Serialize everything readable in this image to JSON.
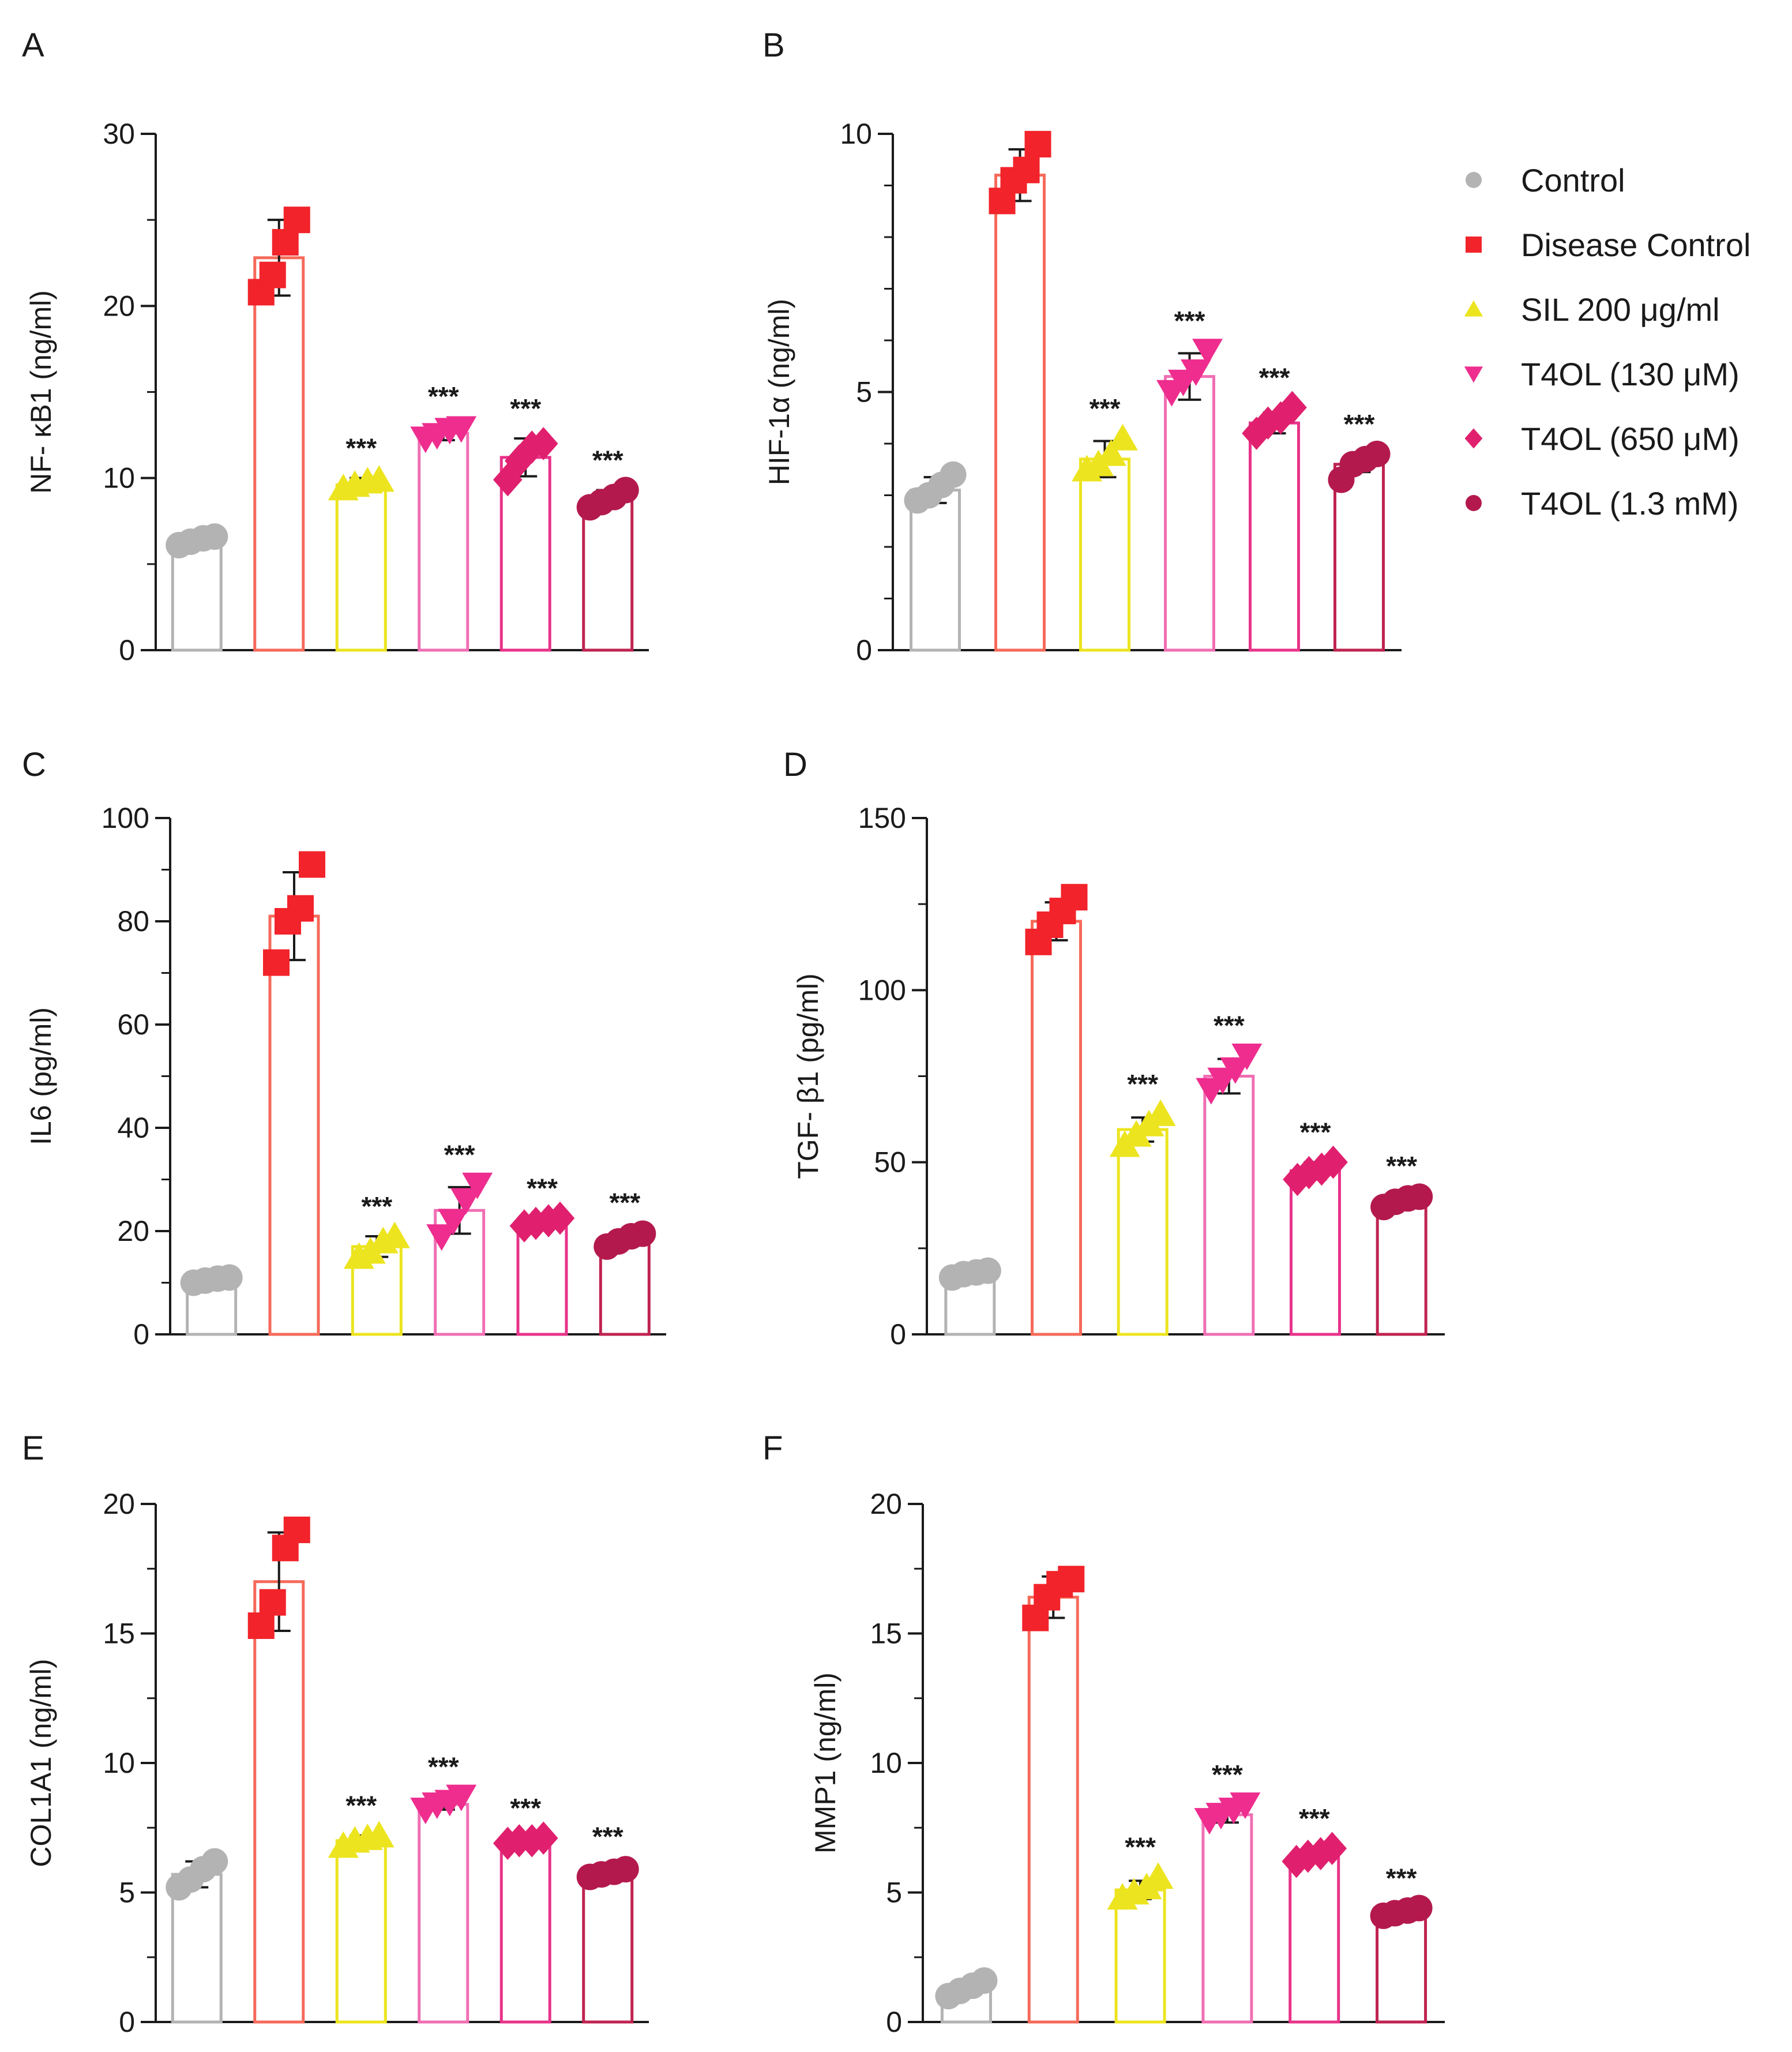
{
  "chart_data": [
    {
      "type": "bar",
      "panel": "A",
      "ylabel": "NF- κB1 (ng/ml)",
      "ylim": [
        0,
        30
      ],
      "yticks": [
        0,
        10,
        20,
        30
      ],
      "categories": [
        "Control",
        "Disease Control",
        "SIL 200 μg/ml",
        "T4OL (130 μM)",
        "T4OL (650 μM)",
        "T4OL (1.3 mM)"
      ],
      "values": [
        6.4,
        22.8,
        9.6,
        12.6,
        11.2,
        8.8
      ],
      "errors": [
        0.2,
        2.2,
        0.4,
        0.4,
        1.1,
        0.5
      ],
      "points": [
        [
          6.1,
          6.3,
          6.5,
          6.6
        ],
        [
          20.8,
          21.8,
          23.7,
          25.0
        ],
        [
          9.4,
          9.6,
          9.8,
          9.9
        ],
        [
          12.3,
          12.5,
          12.8,
          12.9
        ],
        [
          9.9,
          11.0,
          11.8,
          12.0
        ],
        [
          8.3,
          8.6,
          8.9,
          9.3
        ]
      ],
      "significance": [
        "",
        "",
        "***",
        "***",
        "***",
        "***"
      ]
    },
    {
      "type": "bar",
      "panel": "B",
      "ylabel": "HIF-1α  (ng/ml)",
      "ylim": [
        0,
        10
      ],
      "yticks": [
        0,
        5,
        10
      ],
      "categories": [
        "Control",
        "Disease Control",
        "SIL 200 μg/ml",
        "T4OL (130 μM)",
        "T4OL (650 μM)",
        "T4OL (1.3 mM)"
      ],
      "values": [
        3.1,
        9.2,
        3.7,
        5.3,
        4.4,
        3.6
      ],
      "errors": [
        0.25,
        0.5,
        0.35,
        0.45,
        0.2,
        0.15
      ],
      "points": [
        [
          2.9,
          3.0,
          3.2,
          3.4
        ],
        [
          8.7,
          9.1,
          9.3,
          9.8
        ],
        [
          3.5,
          3.6,
          3.8,
          4.1
        ],
        [
          5.0,
          5.2,
          5.4,
          5.8
        ],
        [
          4.2,
          4.4,
          4.5,
          4.7
        ],
        [
          3.3,
          3.6,
          3.7,
          3.8
        ]
      ],
      "significance": [
        "",
        "",
        "***",
        "***",
        "***",
        "***"
      ]
    },
    {
      "type": "bar",
      "panel": "C",
      "ylabel": "IL6 (pg/ml)",
      "ylim": [
        0,
        100
      ],
      "yticks": [
        0,
        20,
        40,
        60,
        80,
        100
      ],
      "categories": [
        "Control",
        "Disease Control",
        "SIL 200 μg/ml",
        "T4OL (130 μM)",
        "T4OL (650 μM)",
        "T4OL (1.3 mM)"
      ],
      "values": [
        10.5,
        81.0,
        17.0,
        24.0,
        21.5,
        18.5
      ],
      "errors": [
        0.5,
        8.5,
        2.0,
        4.5,
        0.8,
        1.2
      ],
      "points": [
        [
          10.0,
          10.4,
          10.8,
          11.0
        ],
        [
          72.0,
          80.0,
          82.5,
          91.0
        ],
        [
          15.0,
          16.0,
          18.0,
          19.0
        ],
        [
          19.0,
          22.0,
          26.0,
          29.0
        ],
        [
          21.0,
          21.5,
          22.0,
          22.5
        ],
        [
          17.0,
          18.0,
          19.0,
          19.5
        ]
      ],
      "significance": [
        "",
        "",
        "***",
        "***",
        "***",
        "***"
      ]
    },
    {
      "type": "bar",
      "panel": "D",
      "ylabel": "TGF- β1 (pg/ml)",
      "ylim": [
        0,
        150
      ],
      "yticks": [
        0,
        50,
        100,
        150
      ],
      "categories": [
        "Control",
        "Disease Control",
        "SIL 200 μg/ml",
        "T4OL (130 μM)",
        "T4OL (650 μM)",
        "T4OL (1.3 mM)"
      ],
      "values": [
        17.5,
        120.0,
        59.5,
        75.0,
        47.5,
        39.0
      ],
      "errors": [
        0.8,
        5.5,
        3.5,
        5.0,
        2.5,
        1.2
      ],
      "points": [
        [
          16.5,
          17.5,
          18.0,
          18.5
        ],
        [
          114.0,
          119.0,
          123.0,
          127.0
        ],
        [
          55.0,
          58.0,
          61.0,
          64.0
        ],
        [
          71.0,
          74.0,
          77.0,
          81.0
        ],
        [
          45.0,
          47.0,
          48.0,
          50.0
        ],
        [
          37.0,
          38.5,
          39.5,
          40.0
        ]
      ],
      "significance": [
        "",
        "",
        "***",
        "***",
        "***",
        "***"
      ]
    },
    {
      "type": "bar",
      "panel": "E",
      "ylabel": "COL1A1 (ng/ml)",
      "ylim": [
        0,
        20
      ],
      "yticks": [
        0,
        5,
        10,
        15,
        20
      ],
      "categories": [
        "Control",
        "Disease Control",
        "SIL 200 μg/ml",
        "T4OL (130 μM)",
        "T4OL (650 μM)",
        "T4OL (1.3 mM)"
      ],
      "values": [
        5.7,
        17.0,
        7.0,
        8.4,
        7.0,
        5.8
      ],
      "errors": [
        0.5,
        1.9,
        0.2,
        0.2,
        0.1,
        0.2
      ],
      "points": [
        [
          5.2,
          5.5,
          5.9,
          6.2
        ],
        [
          15.3,
          16.2,
          18.3,
          19.0
        ],
        [
          6.8,
          7.0,
          7.1,
          7.2
        ],
        [
          8.2,
          8.4,
          8.5,
          8.7
        ],
        [
          6.9,
          7.0,
          7.0,
          7.1
        ],
        [
          5.6,
          5.7,
          5.8,
          5.9
        ]
      ],
      "significance": [
        "",
        "",
        "***",
        "***",
        "***",
        "***"
      ]
    },
    {
      "type": "bar",
      "panel": "F",
      "ylabel": "MMP1 (ng/ml)",
      "ylim": [
        0,
        20
      ],
      "yticks": [
        0,
        5,
        10,
        15,
        20
      ],
      "categories": [
        "Control",
        "Disease Control",
        "SIL 200 μg/ml",
        "T4OL (130 μM)",
        "T4OL (650 μM)",
        "T4OL (1.3 mM)"
      ],
      "values": [
        1.3,
        16.4,
        5.1,
        8.0,
        6.4,
        4.2
      ],
      "errors": [
        0.2,
        0.8,
        0.35,
        0.3,
        0.2,
        0.1
      ],
      "points": [
        [
          1.0,
          1.2,
          1.4,
          1.6
        ],
        [
          15.6,
          16.4,
          16.9,
          17.1
        ],
        [
          4.8,
          5.0,
          5.2,
          5.6
        ],
        [
          7.8,
          8.0,
          8.2,
          8.4
        ],
        [
          6.2,
          6.4,
          6.5,
          6.7
        ],
        [
          4.1,
          4.2,
          4.3,
          4.4
        ]
      ],
      "significance": [
        "",
        "",
        "***",
        "***",
        "***",
        "***"
      ]
    }
  ],
  "legend": {
    "position": "right",
    "items": [
      {
        "label": "Control",
        "marker": "circle",
        "color": "#b3b3b3"
      },
      {
        "label": "Disease Control",
        "marker": "square",
        "color": "#f2232a"
      },
      {
        "label": "SIL 200 μg/ml",
        "marker": "triangle-up",
        "color": "#ece41f"
      },
      {
        "label": "T4OL (130 μM)",
        "marker": "triangle-down",
        "color": "#ee2d8e"
      },
      {
        "label": "T4OL (650 μM)",
        "marker": "diamond",
        "color": "#e0206e"
      },
      {
        "label": "T4OL (1.3 mM)",
        "marker": "circle",
        "color": "#b3194d"
      }
    ]
  },
  "bar_outline_colors": [
    "#b3b3b3",
    "#f56a5a",
    "#ece41f",
    "#f06fb4",
    "#e8338a",
    "#bf2350"
  ]
}
